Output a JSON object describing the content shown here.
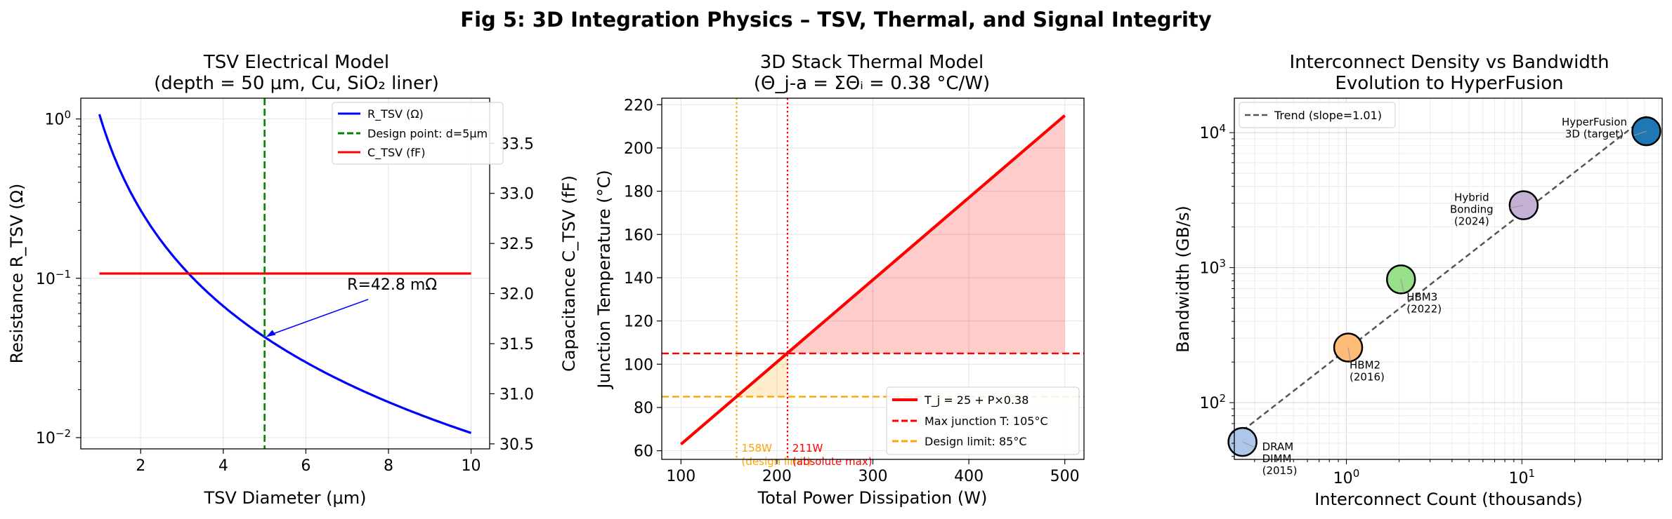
{
  "figure": {
    "title": "Fig 5: 3D Integration Physics – TSV, Thermal, and Signal Integrity"
  },
  "chart_data": [
    {
      "type": "line",
      "title_lines": [
        "TSV Electrical Model",
        "(depth = 50 μm, Cu, SiO₂ liner)"
      ],
      "xlabel": "TSV Diameter (μm)",
      "ylabel": "Resistance R_TSV (Ω)",
      "ylabel_color": "#0000ff",
      "y2label": "Capacitance C_TSV (fF)",
      "y2label_color": "#ff0000",
      "xlim": [
        0.55,
        10.45
      ],
      "ylim": [
        0.0085,
        1.35
      ],
      "yscale": "log",
      "y2lim": [
        30.45,
        33.95
      ],
      "grid": true,
      "legend_position": "top-right",
      "xticks": [
        2,
        4,
        6,
        8,
        10
      ],
      "xtick_labels": [
        "2",
        "4",
        "6",
        "8",
        "10"
      ],
      "yticks": [
        {
          "value": 0.01,
          "base": "10",
          "exp": "−2"
        },
        {
          "value": 0.1,
          "base": "10",
          "exp": "−1"
        },
        {
          "value": 1,
          "base": "10",
          "exp": "0"
        }
      ],
      "y2ticks": [
        30.5,
        31.0,
        31.5,
        32.0,
        32.5,
        33.0,
        33.5
      ],
      "y2tick_labels": [
        "30.5",
        "31.0",
        "31.5",
        "32.0",
        "32.5",
        "33.0",
        "33.5"
      ],
      "series": [
        {
          "name": "R_TSV (Ω)",
          "color": "#0000ff",
          "axis": "left",
          "formula": "1.07/x^2",
          "x": [
            1,
            2,
            3,
            4,
            5,
            6,
            7,
            8,
            9,
            10
          ],
          "values": [
            1.07,
            0.2675,
            0.1189,
            0.0669,
            0.0428,
            0.0297,
            0.0218,
            0.0167,
            0.0132,
            0.0107
          ]
        },
        {
          "name": "Design point: d=5μm",
          "color": "#008000",
          "dashed": true,
          "vline_x": 5
        },
        {
          "name": "C_TSV (fF)",
          "color": "#ff0000",
          "axis": "right",
          "x": [
            1,
            10
          ],
          "values": [
            32.2,
            32.2
          ]
        }
      ],
      "annotations": [
        {
          "text": "R=42.8 mΩ",
          "text_x": 7.0,
          "text_y": 0.085,
          "point_x": 5,
          "point_y": 0.0428,
          "color": "#0000ff"
        }
      ]
    },
    {
      "type": "line",
      "title_lines": [
        "3D Stack Thermal Model",
        "(Θ_j-a = ΣΘᵢ = 0.38 °C/W)"
      ],
      "xlabel": "Total Power Dissipation (W)",
      "ylabel": "Junction Temperature (°C)",
      "xlim": [
        80,
        520
      ],
      "ylim": [
        56,
        223
      ],
      "grid": true,
      "legend_position": "bottom-right",
      "xticks": [
        100,
        200,
        300,
        400,
        500
      ],
      "xtick_labels": [
        "100",
        "200",
        "300",
        "400",
        "500"
      ],
      "yticks": [
        60,
        80,
        100,
        120,
        140,
        160,
        180,
        200,
        220
      ],
      "ytick_labels": [
        "60",
        "80",
        "100",
        "120",
        "140",
        "160",
        "180",
        "200",
        "220"
      ],
      "series": [
        {
          "name": "T_j = 25 + P×0.38",
          "color": "#ff0000",
          "x": [
            100,
            500
          ],
          "values": [
            63,
            215
          ]
        },
        {
          "name": "Max junction T: 105°C",
          "color": "#ff0000",
          "dashed": true,
          "hline_y": 105
        },
        {
          "name": "Design limit: 85°C",
          "color": "#ffa500",
          "dashed": true,
          "hline_y": 85
        }
      ],
      "vlines": [
        {
          "x": 158,
          "color": "#ffa500",
          "label_lines": [
            "158W",
            "(design limit)"
          ]
        },
        {
          "x": 211,
          "color": "#ff0000",
          "label_lines": [
            "211W",
            "(absolute max)"
          ]
        }
      ],
      "fills": [
        {
          "from_temp": 105,
          "color": "#ff0000",
          "opacity": 0.2
        },
        {
          "from_temp": 85,
          "to_temp": 105,
          "color": "#ffa500",
          "opacity": 0.2
        }
      ]
    },
    {
      "type": "scatter",
      "title_lines": [
        "Interconnect Density vs Bandwidth",
        "Evolution to HyperFusion"
      ],
      "xlabel": "Interconnect Count (thousands)",
      "ylabel": "Bandwidth (GB/s)",
      "xscale": "log",
      "yscale": "log",
      "xlim": [
        0.23,
        63
      ],
      "ylim": [
        38,
        18000
      ],
      "grid": true,
      "legend_position": "top-left",
      "xticks": [
        {
          "value": 1,
          "base": "10",
          "exp": "0"
        },
        {
          "value": 10,
          "base": "10",
          "exp": "1"
        }
      ],
      "yticks": [
        {
          "value": 100,
          "base": "10",
          "exp": "2"
        },
        {
          "value": 1000,
          "base": "10",
          "exp": "3"
        },
        {
          "value": 10000,
          "base": "10",
          "exp": "4"
        }
      ],
      "trend": {
        "name": "Trend (slope=1.01)",
        "color": "#555555",
        "x": [
          0.256,
          51.2
        ],
        "values": [
          62,
          13200
        ]
      },
      "points": [
        {
          "lines": [
            "DRAM",
            "DIMM",
            "(2015)"
          ],
          "x": 0.256,
          "y": 51.2,
          "color": "#aec7e8"
        },
        {
          "lines": [
            "HBM2",
            "(2016)"
          ],
          "x": 1.024,
          "y": 256,
          "color": "#ffbb78"
        },
        {
          "lines": [
            "HBM3",
            "(2022)"
          ],
          "x": 2.048,
          "y": 819,
          "color": "#98df8a"
        },
        {
          "lines": [
            "Hybrid",
            "Bonding",
            "(2024)"
          ],
          "x": 10.24,
          "y": 2900,
          "color": "#c5b0d5"
        },
        {
          "lines": [
            "HyperFusion",
            "3D (target)"
          ],
          "x": 51.2,
          "y": 10240,
          "color": "#1f77b4"
        }
      ]
    }
  ]
}
